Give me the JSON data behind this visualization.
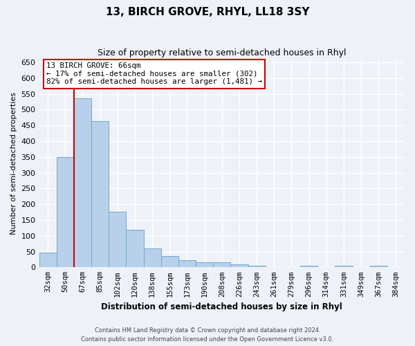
{
  "title": "13, BIRCH GROVE, RHYL, LL18 3SY",
  "subtitle": "Size of property relative to semi-detached houses in Rhyl",
  "xlabel": "Distribution of semi-detached houses by size in Rhyl",
  "ylabel": "Number of semi-detached properties",
  "bin_labels": [
    "32sqm",
    "50sqm",
    "67sqm",
    "85sqm",
    "102sqm",
    "120sqm",
    "138sqm",
    "155sqm",
    "173sqm",
    "190sqm",
    "208sqm",
    "226sqm",
    "243sqm",
    "261sqm",
    "279sqm",
    "296sqm",
    "314sqm",
    "331sqm",
    "349sqm",
    "367sqm",
    "384sqm"
  ],
  "bar_values": [
    46,
    350,
    536,
    464,
    176,
    119,
    60,
    36,
    22,
    15,
    15,
    9,
    5,
    0,
    0,
    5,
    0,
    5,
    0,
    5,
    0
  ],
  "bar_color": "#b8d0ea",
  "bar_edge_color": "#6fa8d0",
  "highlight_color": "#cc0000",
  "ylim": [
    0,
    660
  ],
  "yticks": [
    0,
    50,
    100,
    150,
    200,
    250,
    300,
    350,
    400,
    450,
    500,
    550,
    600,
    650
  ],
  "annotation_title": "13 BIRCH GROVE: 66sqm",
  "annotation_line1": "← 17% of semi-detached houses are smaller (302)",
  "annotation_line2": "82% of semi-detached houses are larger (1,481) →",
  "annotation_box_color": "#cc0000",
  "footer_line1": "Contains HM Land Registry data © Crown copyright and database right 2024.",
  "footer_line2": "Contains public sector information licensed under the Open Government Licence v3.0.",
  "background_color": "#eef2f8",
  "grid_color": "#ffffff"
}
